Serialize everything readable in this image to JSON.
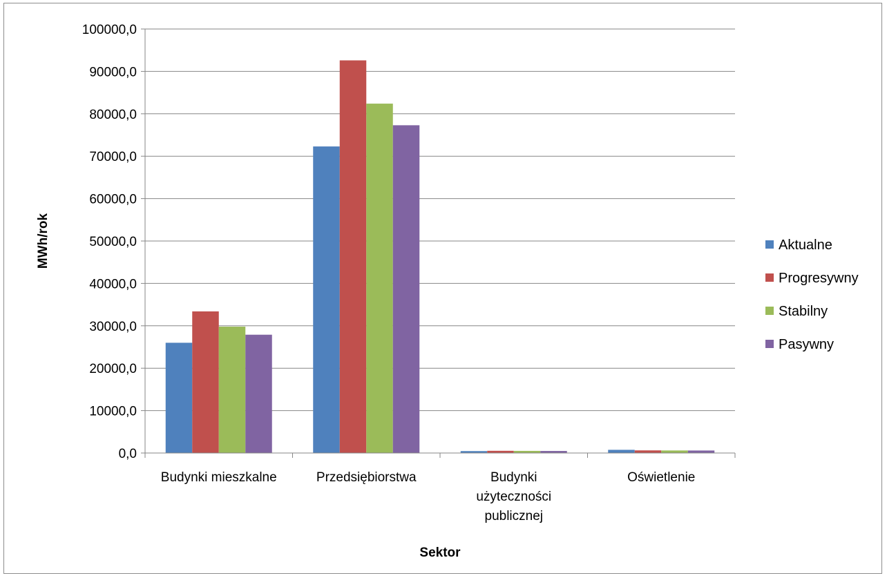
{
  "chart_data": {
    "type": "bar",
    "title": "",
    "xlabel": "Sektor",
    "ylabel": "MWh/rok",
    "ylim": [
      0,
      100000
    ],
    "yticks": [
      "0,0",
      "10000,0",
      "20000,0",
      "30000,0",
      "40000,0",
      "50000,0",
      "60000,0",
      "70000,0",
      "80000,0",
      "90000,0",
      "100000,0"
    ],
    "categories": [
      [
        "Budynki mieszkalne"
      ],
      [
        "Przedsiębiorstwa"
      ],
      [
        "Budynki",
        "użyteczności",
        "publicznej"
      ],
      [
        "Oświetlenie"
      ]
    ],
    "series": [
      {
        "name": "Aktualne",
        "color": "#4F81BD",
        "values": [
          26000,
          72300,
          450,
          750
        ]
      },
      {
        "name": "Progresywny",
        "color": "#C0504D",
        "values": [
          33400,
          92600,
          520,
          620
        ]
      },
      {
        "name": "Stabilny",
        "color": "#9BBB59",
        "values": [
          29800,
          82400,
          500,
          600
        ]
      },
      {
        "name": "Pasywny",
        "color": "#8064A2",
        "values": [
          27900,
          77300,
          480,
          590
        ]
      }
    ],
    "grid": true,
    "legend_position": "right"
  }
}
